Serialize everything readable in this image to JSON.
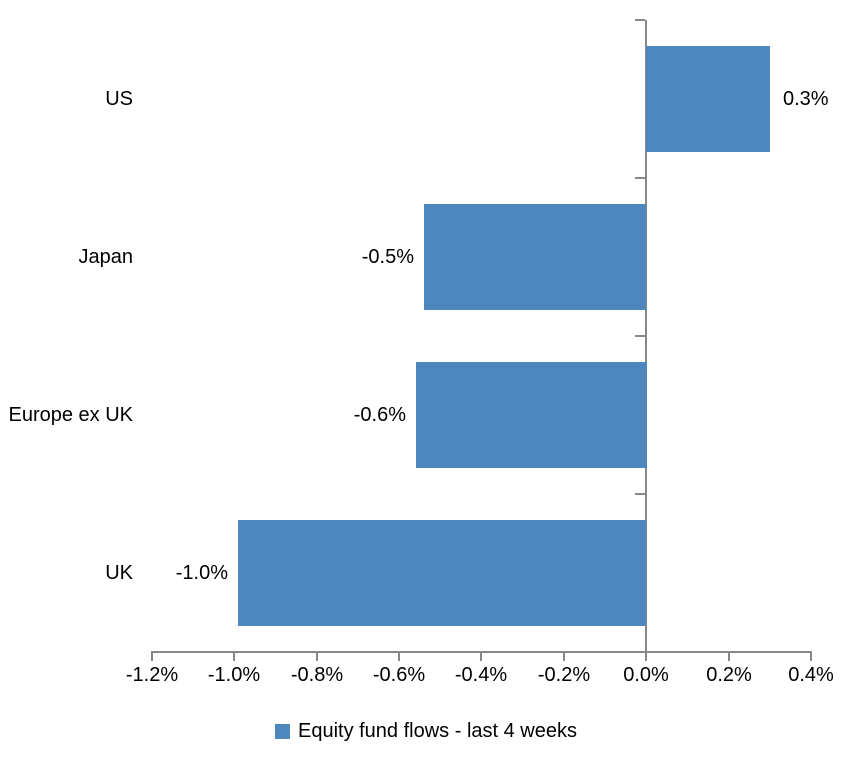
{
  "chart_data": {
    "type": "bar",
    "orientation": "horizontal",
    "title": "",
    "xlabel": "",
    "ylabel": "",
    "grid": false,
    "categories": [
      "US",
      "Japan",
      "Europe ex UK",
      "UK"
    ],
    "series": [
      {
        "name": "Equity fund flows - last 4 weeks",
        "values": [
          0.3,
          -0.54,
          -0.56,
          -0.99
        ],
        "data_labels": [
          "0.3%",
          "-0.5%",
          "-0.6%",
          "-1.0%"
        ]
      }
    ],
    "xlim": [
      -1.2,
      0.4
    ],
    "xticks": [
      -1.2,
      -1.0,
      -0.8,
      -0.6,
      -0.4,
      -0.2,
      0.0,
      0.2,
      0.4
    ],
    "xtick_labels": [
      "-1.2%",
      "-1.0%",
      "-0.8%",
      "-0.6%",
      "-0.4%",
      "-0.2%",
      "0.0%",
      "0.2%",
      "0.4%"
    ],
    "legend_position": "bottom",
    "legend": [
      {
        "label": "Equity fund flows - last 4 weeks",
        "color": "#4D87BE"
      }
    ],
    "colors": {
      "bar": "#4D87BE",
      "axis": "#888888",
      "text": "#000000",
      "background": "#FFFFFF"
    }
  }
}
